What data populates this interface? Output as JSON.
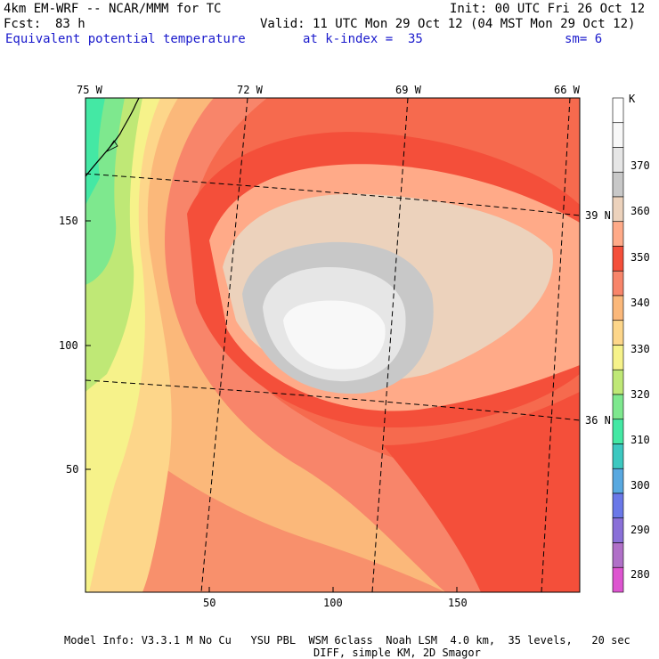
{
  "header": {
    "model_title": "4km EM-WRF -- NCAR/MMM for TC",
    "init_time": "Init: 00 UTC Fri 26 Oct 12",
    "fcst_label": "Fcst:",
    "fcst_value": "83 h",
    "valid_time": "Valid: 11 UTC Mon 29 Oct 12 (04 MST Mon 29 Oct 12)",
    "field_name": "Equivalent potential temperature",
    "level": "at k-index =  35",
    "smoothing": "sm= 6"
  },
  "map": {
    "lon_labels": [
      "75 W",
      "72 W",
      "69 W",
      "66 W"
    ],
    "lat_labels": [
      "39 N",
      "36 N"
    ],
    "x_ticks": [
      "50",
      "100",
      "150"
    ],
    "y_ticks": [
      "150",
      "100",
      "50"
    ]
  },
  "colorbar": {
    "unit": "K",
    "labels": [
      "370",
      "360",
      "350",
      "340",
      "330",
      "320",
      "310",
      "300",
      "290",
      "280"
    ],
    "colors": [
      "#ffffff",
      "#f8f8f8",
      "#e6e6e6",
      "#c8c8c8",
      "#ecd2bc",
      "#ffaa88",
      "#f44f3a",
      "#f8856a",
      "#fbb87a",
      "#fdd68a",
      "#f6f28a",
      "#bfe876",
      "#7ee88e",
      "#44e8a4",
      "#3cc8c0",
      "#58a8e0",
      "#6a78e8",
      "#8a70d8",
      "#b070c8",
      "#dd55d0"
    ]
  },
  "footer": {
    "line1": "Model Info: V3.3.1 M No Cu   YSU PBL  WSM 6class  Noah LSM  4.0 km,  35 levels,   20 sec",
    "line2": "DIFF, simple KM, 2D Smagor"
  }
}
